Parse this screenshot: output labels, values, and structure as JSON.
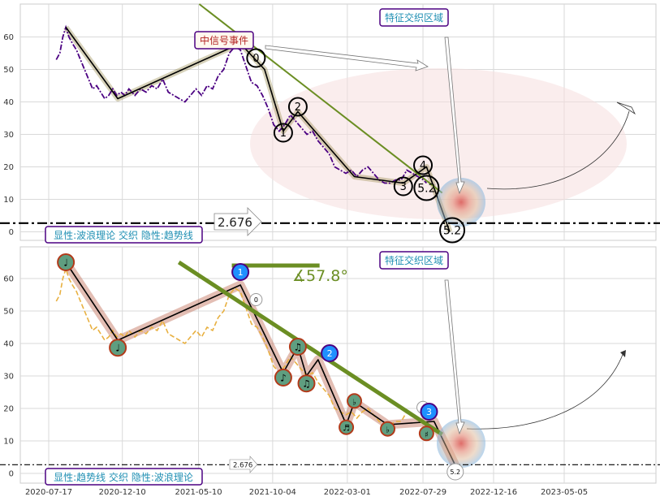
{
  "chart_data": [
    {
      "type": "line",
      "panel": "top",
      "ylim": [
        -3,
        70
      ],
      "yticks": [
        0,
        10,
        20,
        30,
        40,
        50,
        60
      ],
      "grid": true,
      "price_series": {
        "color": "#4b0082",
        "points": [
          [
            "2020-08-01",
            53
          ],
          [
            "2020-08-08",
            55
          ],
          [
            "2020-08-14",
            60
          ],
          [
            "2020-08-20",
            63
          ],
          [
            "2020-08-26",
            60
          ],
          [
            "2020-09-02",
            58
          ],
          [
            "2020-09-10",
            56
          ],
          [
            "2020-09-18",
            53
          ],
          [
            "2020-09-26",
            50
          ],
          [
            "2020-10-04",
            47
          ],
          [
            "2020-10-12",
            44
          ],
          [
            "2020-10-20",
            45
          ],
          [
            "2020-10-28",
            43
          ],
          [
            "2020-11-05",
            41
          ],
          [
            "2020-11-13",
            42
          ],
          [
            "2020-11-21",
            44
          ],
          [
            "2020-11-29",
            42
          ],
          [
            "2020-12-07",
            43
          ],
          [
            "2020-12-15",
            42
          ],
          [
            "2020-12-23",
            44
          ],
          [
            "2021-01-04",
            42
          ],
          [
            "2021-01-15",
            44
          ],
          [
            "2021-01-26",
            43
          ],
          [
            "2021-02-06",
            45
          ],
          [
            "2021-02-17",
            44
          ],
          [
            "2021-02-28",
            47
          ],
          [
            "2021-03-11",
            43
          ],
          [
            "2021-03-22",
            42
          ],
          [
            "2021-04-02",
            41
          ],
          [
            "2021-04-13",
            40
          ],
          [
            "2021-04-24",
            42
          ],
          [
            "2021-05-05",
            44
          ],
          [
            "2021-05-16",
            42
          ],
          [
            "2021-05-27",
            45
          ],
          [
            "2021-06-07",
            44
          ],
          [
            "2021-06-18",
            48
          ],
          [
            "2021-06-29",
            50
          ],
          [
            "2021-07-10",
            55
          ],
          [
            "2021-07-21",
            57
          ],
          [
            "2021-08-01",
            56
          ],
          [
            "2021-08-12",
            51
          ],
          [
            "2021-08-23",
            46
          ],
          [
            "2021-09-03",
            45
          ],
          [
            "2021-09-14",
            42
          ],
          [
            "2021-09-25",
            38
          ],
          [
            "2021-10-06",
            33
          ],
          [
            "2021-10-17",
            31
          ],
          [
            "2021-10-28",
            33
          ],
          [
            "2021-11-08",
            36
          ],
          [
            "2021-11-19",
            34
          ],
          [
            "2021-11-30",
            32
          ],
          [
            "2021-12-11",
            30
          ],
          [
            "2021-12-22",
            31
          ],
          [
            "2022-01-02",
            28
          ],
          [
            "2022-01-13",
            26
          ],
          [
            "2022-01-24",
            24
          ],
          [
            "2022-02-04",
            20
          ],
          [
            "2022-02-15",
            19
          ],
          [
            "2022-02-26",
            18
          ],
          [
            "2022-03-09",
            19
          ],
          [
            "2022-03-20",
            17
          ],
          [
            "2022-03-31",
            19
          ],
          [
            "2022-04-11",
            20
          ],
          [
            "2022-04-22",
            18
          ],
          [
            "2022-05-03",
            16
          ],
          [
            "2022-05-14",
            15
          ],
          [
            "2022-05-25",
            15
          ],
          [
            "2022-06-05",
            16
          ],
          [
            "2022-06-16",
            16
          ],
          [
            "2022-06-27",
            19
          ],
          [
            "2022-07-08",
            18
          ],
          [
            "2022-07-19",
            17
          ],
          [
            "2022-07-30",
            16
          ],
          [
            "2022-08-05",
            15
          ]
        ]
      },
      "wave_path": {
        "color": "#000000",
        "points": [
          [
            "2020-08-20",
            63
          ],
          [
            "2020-12-01",
            41
          ],
          [
            "2021-08-01",
            58
          ],
          [
            "2021-09-18",
            50
          ],
          [
            "2021-10-25",
            31
          ],
          [
            "2021-11-23",
            37
          ],
          [
            "2022-03-15",
            17
          ],
          [
            "2022-06-20",
            15
          ],
          [
            "2022-08-05",
            20
          ],
          [
            "2022-09-20",
            0
          ]
        ]
      },
      "trend_line": {
        "color": "#6b8e23",
        "points": [
          [
            "2021-04-01",
            75
          ],
          [
            "2022-09-05",
            12
          ]
        ]
      },
      "hline": {
        "y": 2.676,
        "label": "2.676"
      },
      "wave_points": [
        {
          "label": "0",
          "date": "2021-09-01",
          "y": 53.5
        },
        {
          "label": "1",
          "date": "2021-10-25",
          "y": 30.5
        },
        {
          "label": "2",
          "date": "2021-11-23",
          "y": 38.5
        },
        {
          "label": "3",
          "date": "2022-06-20",
          "y": 14
        },
        {
          "label": "4",
          "date": "2022-07-29",
          "y": 20.5
        },
        {
          "label": "5.2",
          "date": "2022-08-05",
          "y": 13.5
        },
        {
          "label": "5.2",
          "date": "2022-09-25",
          "y": 0.5
        }
      ],
      "annotations": {
        "event": "中信号事件",
        "zone": "特征交织区域",
        "legend": "显性:波浪理论 交织 隐性:趋势线"
      }
    },
    {
      "type": "line",
      "panel": "bottom",
      "ylim": [
        -3,
        70
      ],
      "yticks": [
        0,
        10,
        20,
        30,
        40,
        50,
        60
      ],
      "grid": true,
      "xtick_labels": [
        "2020-07-17",
        "2020-12-10",
        "2021-05-10",
        "2021-10-04",
        "2022-03-01",
        "2022-07-29",
        "2022-12-16",
        "2023-05-05"
      ],
      "price_series": {
        "color": "#e8b040",
        "points": [
          [
            "2020-08-01",
            53
          ],
          [
            "2020-08-08",
            55
          ],
          [
            "2020-08-14",
            60
          ],
          [
            "2020-08-20",
            63
          ],
          [
            "2020-08-26",
            60
          ],
          [
            "2020-09-02",
            58
          ],
          [
            "2020-09-10",
            56
          ],
          [
            "2020-09-18",
            53
          ],
          [
            "2020-09-26",
            50
          ],
          [
            "2020-10-04",
            47
          ],
          [
            "2020-10-12",
            44
          ],
          [
            "2020-10-20",
            45
          ],
          [
            "2020-10-28",
            43
          ],
          [
            "2020-11-05",
            41
          ],
          [
            "2020-11-13",
            42
          ],
          [
            "2020-11-21",
            44
          ],
          [
            "2020-11-29",
            42
          ],
          [
            "2020-12-07",
            43
          ],
          [
            "2020-12-15",
            42
          ],
          [
            "2020-12-23",
            44
          ],
          [
            "2021-01-04",
            42
          ],
          [
            "2021-01-15",
            44
          ],
          [
            "2021-01-26",
            43
          ],
          [
            "2021-02-06",
            45
          ],
          [
            "2021-02-17",
            44
          ],
          [
            "2021-02-28",
            47
          ],
          [
            "2021-03-11",
            43
          ],
          [
            "2021-03-22",
            42
          ],
          [
            "2021-04-02",
            41
          ],
          [
            "2021-04-13",
            40
          ],
          [
            "2021-04-24",
            42
          ],
          [
            "2021-05-05",
            44
          ],
          [
            "2021-05-16",
            42
          ],
          [
            "2021-05-27",
            45
          ],
          [
            "2021-06-07",
            44
          ],
          [
            "2021-06-18",
            48
          ],
          [
            "2021-06-29",
            50
          ],
          [
            "2021-07-10",
            55
          ],
          [
            "2021-07-21",
            57
          ],
          [
            "2021-08-01",
            56
          ],
          [
            "2021-08-12",
            51
          ],
          [
            "2021-08-23",
            46
          ],
          [
            "2021-09-03",
            45
          ],
          [
            "2021-09-14",
            42
          ],
          [
            "2021-09-25",
            38
          ],
          [
            "2021-10-06",
            33
          ],
          [
            "2021-10-17",
            31
          ],
          [
            "2021-10-28",
            33
          ],
          [
            "2021-11-08",
            36
          ],
          [
            "2021-11-19",
            34
          ],
          [
            "2021-11-30",
            32
          ],
          [
            "2021-12-11",
            30
          ],
          [
            "2021-12-22",
            31
          ],
          [
            "2022-01-02",
            28
          ],
          [
            "2022-01-13",
            26
          ],
          [
            "2022-01-24",
            24
          ],
          [
            "2022-02-04",
            20
          ],
          [
            "2022-02-15",
            19
          ],
          [
            "2022-02-26",
            18
          ],
          [
            "2022-03-09",
            19
          ],
          [
            "2022-03-20",
            17
          ],
          [
            "2022-03-31",
            19
          ],
          [
            "2022-04-11",
            20
          ],
          [
            "2022-04-22",
            18
          ],
          [
            "2022-05-03",
            16
          ],
          [
            "2022-05-14",
            15
          ],
          [
            "2022-05-25",
            15
          ],
          [
            "2022-06-05",
            16
          ],
          [
            "2022-06-16",
            16
          ],
          [
            "2022-06-27",
            19
          ],
          [
            "2022-07-08",
            18
          ],
          [
            "2022-07-19",
            17
          ],
          [
            "2022-07-30",
            16
          ],
          [
            "2022-08-05",
            15
          ]
        ]
      },
      "wave_path": {
        "color": "#000000",
        "points": [
          [
            "2020-08-20",
            65
          ],
          [
            "2020-12-01",
            41
          ],
          [
            "2021-08-01",
            58
          ],
          [
            "2021-10-25",
            31
          ],
          [
            "2021-11-23",
            39
          ],
          [
            "2021-12-10",
            30
          ],
          [
            "2022-01-02",
            35
          ],
          [
            "2022-02-27",
            15
          ],
          [
            "2022-03-15",
            22
          ],
          [
            "2022-05-20",
            15
          ],
          [
            "2022-08-20",
            16
          ],
          [
            "2022-10-01",
            2.5
          ]
        ]
      },
      "trend_line": {
        "color": "#6b8e23",
        "points": [
          [
            "2021-04-01",
            65
          ],
          [
            "2022-09-05",
            12
          ]
        ]
      },
      "angle_ray": {
        "color": "#6b8e23",
        "points": [
          [
            "2021-07-15",
            64
          ],
          [
            "2022-01-05",
            64
          ]
        ],
        "label": "∡57.8°"
      },
      "hline": {
        "y": 2.676,
        "label": "2.676"
      },
      "note_markers": [
        {
          "symbol": "♩",
          "date": "2020-08-20",
          "y": 65
        },
        {
          "symbol": "♩",
          "date": "2020-12-01",
          "y": 38.7
        },
        {
          "symbol": "♪",
          "date": "2021-10-25",
          "y": 29.5
        },
        {
          "symbol": "♫",
          "date": "2021-11-23",
          "y": 39
        },
        {
          "symbol": "♫",
          "date": "2021-12-10",
          "y": 27.7
        },
        {
          "symbol": "♬",
          "date": "2022-02-27",
          "y": 14.2
        },
        {
          "symbol": "♭",
          "date": "2022-03-15",
          "y": 22.3
        },
        {
          "symbol": "♭",
          "date": "2022-05-20",
          "y": 13.7
        },
        {
          "symbol": "♯",
          "date": "2022-08-05",
          "y": 12.3
        }
      ],
      "wave_points": [
        {
          "label": "1",
          "date": "2021-08-01",
          "y": 62
        },
        {
          "label": "0",
          "date": "2021-09-01",
          "y": 53.5
        },
        {
          "label": "2",
          "date": "2022-01-25",
          "y": 37
        },
        {
          "label": "4",
          "date": "2022-07-29",
          "y": 20.3
        },
        {
          "label": "3",
          "date": "2022-08-10",
          "y": 19
        },
        {
          "label": "5.2",
          "date": "2022-10-01",
          "y": 0.5
        }
      ],
      "annotations": {
        "zone": "特征交织区域",
        "legend": "显性:趋势线 交织 隐性:波浪理论"
      }
    }
  ]
}
